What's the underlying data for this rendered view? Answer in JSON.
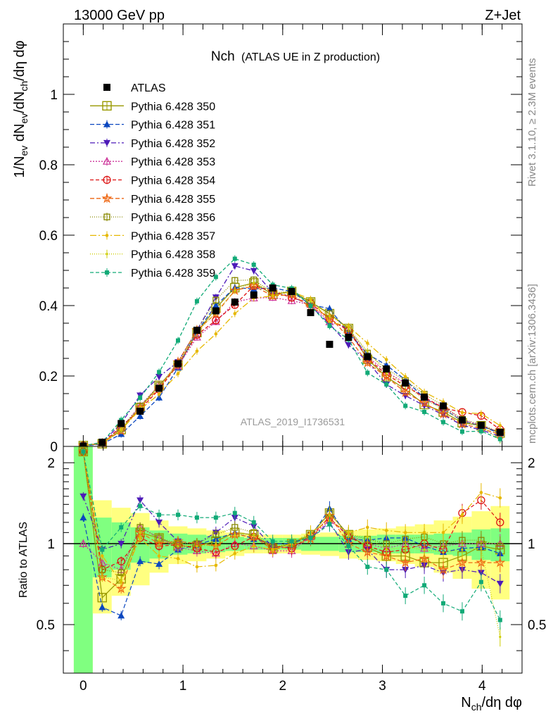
{
  "header": {
    "left": "13000 GeV pp",
    "right": "Z+Jet"
  },
  "side": {
    "rivet": "Rivet 3.1.10, ≥ 2.3M events",
    "mcplots": "mcplots.cern.ch [arXiv:1306.3436]"
  },
  "chart_data": {
    "type": "line",
    "title": "Nch",
    "subtitle": "(ATLAS UE in Z production)",
    "analysis": "ATLAS_2019_I1736531",
    "xlabel": "N_ch/dη dφ",
    "ylabel": "1/N_ev dN_ev/dN_ch/dη dφ",
    "ratio_ylabel": "Ratio to ATLAS",
    "xlim": [
      -0.2,
      4.4
    ],
    "ylim": [
      0,
      1.2
    ],
    "ratio_ylim": [
      0.33,
      2.3
    ],
    "x_ticks": [
      "0",
      "1",
      "2",
      "3",
      "4"
    ],
    "y_ticks": [
      "0",
      "0.2",
      "0.4",
      "0.6",
      "0.8",
      "1"
    ],
    "ratio_ticks": [
      "0.5",
      "1",
      "2"
    ],
    "x": [
      0.0,
      0.19,
      0.38,
      0.57,
      0.76,
      0.95,
      1.14,
      1.33,
      1.52,
      1.71,
      1.9,
      2.09,
      2.28,
      2.47,
      2.66,
      2.85,
      3.04,
      3.23,
      3.42,
      3.61,
      3.8,
      3.99,
      4.18
    ],
    "atlas": {
      "name": "ATLAS",
      "values": [
        0.001,
        0.012,
        0.065,
        0.1,
        0.165,
        0.235,
        0.33,
        0.385,
        0.41,
        0.43,
        0.45,
        0.44,
        0.38,
        0.29,
        0.31,
        0.255,
        0.22,
        0.18,
        0.14,
        0.115,
        0.075,
        0.06,
        0.04
      ]
    },
    "series": [
      {
        "name": "Pythia 6.428 350",
        "color": "#999900",
        "marker": "square-open",
        "dash": "",
        "ratio": [
          2.2,
          0.63,
          0.74,
          1.1,
          1.05,
          0.98,
          0.98,
          1.02,
          1.1,
          1.08,
          0.96,
          1.0,
          1.08,
          1.3,
          1.08,
          0.97,
          0.9,
          0.9,
          0.85,
          0.85,
          0.9,
          0.98,
          0.95
        ]
      },
      {
        "name": "Pythia 6.428 351",
        "color": "#0b47bf",
        "marker": "triangle",
        "dash": "6,3",
        "ratio": [
          1.25,
          0.58,
          0.54,
          0.86,
          0.84,
          0.95,
          0.99,
          1.04,
          1.1,
          1.04,
          1.0,
          1.0,
          1.06,
          1.35,
          1.04,
          1.03,
          1.05,
          1.05,
          0.98,
          0.93,
          0.96,
          0.97,
          0.92
        ]
      },
      {
        "name": "Pythia 6.428 352",
        "color": "#4d1ab8",
        "marker": "triangle-down",
        "dash": "7,3,2,3",
        "ratio": [
          1.5,
          0.95,
          1.0,
          1.45,
          1.2,
          1.02,
          1.0,
          1.1,
          1.25,
          1.16,
          0.97,
          0.97,
          1.05,
          1.2,
          0.93,
          0.95,
          0.8,
          0.8,
          0.83,
          0.78,
          0.8,
          0.78,
          0.71
        ]
      },
      {
        "name": "Pythia 6.428 353",
        "color": "#cc3399",
        "marker": "triangle-open",
        "dash": "2,2",
        "ratio": [
          1.0,
          0.85,
          0.8,
          1.15,
          1.05,
          0.97,
          0.94,
          0.92,
          1.0,
          0.98,
          0.94,
          0.94,
          1.06,
          1.22,
          1.08,
          1.0,
          0.96,
          1.0,
          0.96,
          0.98,
          1.0,
          1.0,
          1.0
        ]
      },
      {
        "name": "Pythia 6.428 354",
        "color": "#dd1111",
        "marker": "circle-open",
        "dash": "5,3",
        "ratio": [
          2.2,
          0.8,
          0.86,
          1.05,
          0.98,
          0.99,
          0.96,
          0.93,
          0.98,
          1.06,
          0.98,
          0.96,
          1.07,
          1.25,
          1.06,
          0.98,
          0.93,
          0.95,
          1.0,
          0.95,
          1.3,
          1.45,
          1.2
        ]
      },
      {
        "name": "Pythia 6.428 355",
        "color": "#ee6611",
        "marker": "star-open",
        "dash": "6,3",
        "ratio": [
          2.2,
          0.75,
          0.68,
          1.1,
          1.0,
          1.02,
          1.0,
          0.98,
          1.08,
          1.06,
          0.95,
          0.98,
          1.04,
          1.27,
          1.0,
          0.93,
          0.9,
          0.85,
          0.88,
          0.8,
          0.85,
          0.85,
          0.85
        ]
      },
      {
        "name": "Pythia 6.428 356",
        "color": "#888800",
        "marker": "square-open-small",
        "dash": "1,2",
        "ratio": [
          2.2,
          0.8,
          0.78,
          1.15,
          1.05,
          1.0,
          1.0,
          1.08,
          1.15,
          1.1,
          0.97,
          1.0,
          1.08,
          1.3,
          1.08,
          1.04,
          1.0,
          1.04,
          1.06,
          1.0,
          1.03,
          1.03,
          0.98
        ]
      },
      {
        "name": "Pythia 6.428 357",
        "color": "#e6b800",
        "marker": "dot",
        "dash": "9,3,2,3",
        "ratio": [
          2.2,
          0.9,
          0.72,
          1.05,
          0.9,
          0.88,
          0.82,
          0.83,
          0.92,
          0.98,
          0.95,
          1.0,
          1.1,
          1.22,
          1.1,
          1.15,
          1.12,
          1.1,
          1.1,
          1.1,
          1.28,
          1.55,
          1.48
        ]
      },
      {
        "name": "Pythia 6.428 358",
        "color": "#cccc00",
        "marker": "dot-small",
        "dash": "1,2",
        "ratio": [
          2.2,
          0.75,
          0.73,
          1.1,
          1.03,
          0.98,
          0.98,
          0.99,
          1.08,
          1.08,
          0.98,
          0.98,
          1.08,
          1.28,
          1.08,
          1.06,
          0.95,
          0.97,
          0.95,
          0.93,
          0.95,
          0.96,
          0.45
        ]
      },
      {
        "name": "Pythia 6.428 359",
        "color": "#11aa77",
        "marker": "square-small",
        "dash": "5,3",
        "ratio": [
          2.2,
          0.95,
          1.15,
          1.38,
          1.28,
          1.28,
          1.25,
          1.25,
          1.3,
          1.2,
          1.02,
          1.02,
          1.05,
          1.18,
          0.98,
          0.82,
          0.8,
          0.64,
          0.7,
          0.6,
          0.56,
          0.72,
          0.52
        ]
      }
    ],
    "band_inner": [
      2.2,
      0.25,
      0.2,
      0.15,
      0.12,
      0.09,
      0.08,
      0.07,
      0.06,
      0.05,
      0.05,
      0.05,
      0.06,
      0.06,
      0.07,
      0.07,
      0.08,
      0.08,
      0.08,
      0.09,
      0.1,
      0.13,
      0.14
    ],
    "band_outer": [
      2.2,
      0.45,
      0.36,
      0.3,
      0.22,
      0.16,
      0.14,
      0.12,
      0.1,
      0.08,
      0.08,
      0.08,
      0.09,
      0.1,
      0.12,
      0.13,
      0.14,
      0.16,
      0.18,
      0.22,
      0.26,
      0.32,
      0.38
    ]
  }
}
